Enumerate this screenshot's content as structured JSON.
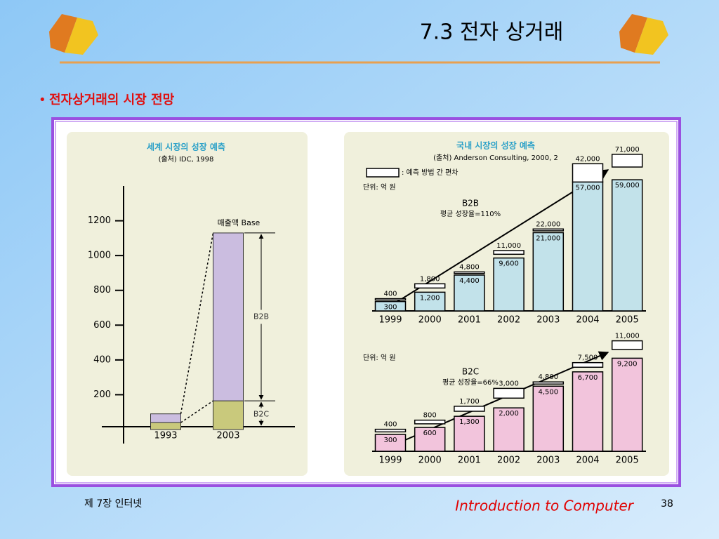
{
  "slide": {
    "title": "7.3 전자 상거래",
    "bullet": "전자상거래의 시장 전망",
    "footer_left": "제 7장 인터넷",
    "footer_center": "Introduction to Computer",
    "page": "38"
  },
  "chart_data": [
    {
      "type": "stacked-bar",
      "title": "세계 시장의 성장 예측",
      "subtitle": "(출처) IDC, 1998",
      "categories": [
        "1993",
        "2003"
      ],
      "series": [
        {
          "name": "B2C",
          "color": "#c9c97c",
          "values": [
            40,
            165
          ]
        },
        {
          "name": "B2B",
          "color": "#cbbde0",
          "values": [
            50,
            965
          ]
        }
      ],
      "ylim": [
        0,
        1400
      ],
      "yticks": [
        200,
        400,
        600,
        800,
        1000,
        1200
      ],
      "annotations": [
        "매출액 Base"
      ]
    },
    {
      "type": "range-bar",
      "title": "국내 시장의 성장 예측",
      "subtitle": "(출처) Anderson Consulting, 2000, 2",
      "legend": ": 예측 방법 간 편차",
      "unit": "단위: 억 원",
      "annotations": [
        "B2B",
        "평균 성장율=110%"
      ],
      "categories": [
        "1999",
        "2000",
        "2001",
        "2002",
        "2003",
        "2004",
        "2005"
      ],
      "series": [
        {
          "color": "#c2e2ea",
          "values": [
            300,
            1200,
            4400,
            9600,
            21000,
            57000,
            59000
          ],
          "value_labels": [
            "300",
            "1,200",
            "4,400",
            "9,600",
            "21,000",
            "57,000",
            "59,000"
          ]
        },
        {
          "color": "#ffffff",
          "values": [
            400,
            1800,
            4800,
            11000,
            22000,
            42000,
            71000
          ],
          "value_labels": [
            "400",
            "1,800",
            "4,800",
            "11,000",
            "22,000",
            "42,000",
            "71,000"
          ]
        }
      ]
    },
    {
      "type": "range-bar",
      "unit": "단위: 억 원",
      "annotations": [
        "B2C",
        "평균 성장율=66%"
      ],
      "categories": [
        "1999",
        "2000",
        "2001",
        "2002",
        "2003",
        "2004",
        "2005"
      ],
      "series": [
        {
          "color": "#f2c4dc",
          "values": [
            300,
            600,
            1300,
            2000,
            4500,
            6700,
            9200
          ],
          "value_labels": [
            "300",
            "600",
            "1,300",
            "2,000",
            "4,500",
            "6,700",
            "9,200"
          ]
        },
        {
          "color": "#ffffff",
          "values": [
            400,
            800,
            1700,
            3000,
            4800,
            7500,
            11000
          ],
          "value_labels": [
            "400",
            "800",
            "1,700",
            "3,000",
            "4,800",
            "7,500",
            "11,000"
          ]
        }
      ]
    }
  ]
}
